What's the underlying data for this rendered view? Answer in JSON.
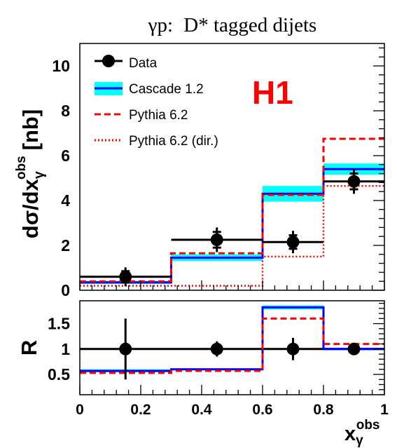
{
  "title": {
    "prefix": "γp:",
    "rest": "D* tagged dijets"
  },
  "logo": "H1",
  "axes": {
    "x_main": "x",
    "x_sup": "obs",
    "x_sub": "γ",
    "y_top_main": "dσ/dx",
    "y_top_sup": "obs",
    "y_top_sub": "γ",
    "y_top_unit": "[nb]",
    "y_bottom": "R"
  },
  "legend": [
    {
      "key": "data",
      "label": "Data"
    },
    {
      "key": "cascade",
      "label": "Cascade 1.2"
    },
    {
      "key": "pythia",
      "label": "Pythia 6.2"
    },
    {
      "key": "pythia_dir",
      "label": "Pythia 6.2 (dir.)"
    }
  ],
  "colors": {
    "cascade": "#0000ff",
    "cascade_band": "#00ffff",
    "pythia": "#ff0000",
    "logo": "#ff0000",
    "data": "#000000"
  },
  "chart_data": [
    {
      "type": "line",
      "panel": "cross-section",
      "bin_edges": [
        0,
        0.3,
        0.6,
        0.8,
        1.0
      ],
      "xlim": [
        0,
        1
      ],
      "ylim": [
        0,
        11
      ],
      "x_ticks": [
        0,
        0.2,
        0.4,
        0.6,
        0.8,
        1
      ],
      "y_ticks": [
        0,
        2,
        4,
        6,
        8,
        10
      ],
      "series": [
        {
          "name": "Data",
          "x": [
            0.15,
            0.45,
            0.7,
            0.9
          ],
          "values": [
            0.6,
            2.25,
            2.15,
            4.85
          ],
          "yerr": [
            0.42,
            0.55,
            0.5,
            0.55
          ],
          "yerr_stat": [
            0.25,
            0.35,
            0.3,
            0.35
          ]
        },
        {
          "name": "Cascade 1.2",
          "values": [
            0.35,
            1.45,
            4.3,
            5.4
          ],
          "band": [
            [
              0.28,
              0.42
            ],
            [
              1.3,
              1.6
            ],
            [
              3.95,
              4.65
            ],
            [
              5.15,
              5.65
            ]
          ]
        },
        {
          "name": "Pythia 6.2",
          "values": [
            0.4,
            1.65,
            4.25,
            6.75
          ]
        },
        {
          "name": "Pythia 6.2 (dir.)",
          "values": [
            0.2,
            0.2,
            1.5,
            4.65
          ]
        }
      ]
    },
    {
      "type": "line",
      "panel": "ratio",
      "bin_edges": [
        0,
        0.3,
        0.6,
        0.8,
        1.0
      ],
      "xlim": [
        0,
        1
      ],
      "ylim": [
        0.1,
        1.95
      ],
      "x_ticks": [
        0,
        0.2,
        0.4,
        0.6,
        0.8,
        1
      ],
      "y_ticks": [
        0.5,
        1,
        1.5
      ],
      "reference": 1,
      "series": [
        {
          "name": "Data",
          "x": [
            0.15,
            0.45,
            0.7,
            0.9
          ],
          "values": [
            1,
            1,
            1,
            1
          ],
          "yerr": [
            0.6,
            0.15,
            0.22,
            0.05
          ]
        },
        {
          "name": "Cascade 1.2",
          "values": [
            0.57,
            0.6,
            1.82,
            1.0
          ],
          "band": [
            [
              0.54,
              0.6
            ],
            [
              0.58,
              0.62
            ],
            [
              1.78,
              1.86
            ],
            [
              0.98,
              1.02
            ]
          ]
        },
        {
          "name": "Pythia 6.2",
          "values": [
            0.53,
            0.57,
            1.6,
            1.1
          ]
        }
      ]
    }
  ]
}
